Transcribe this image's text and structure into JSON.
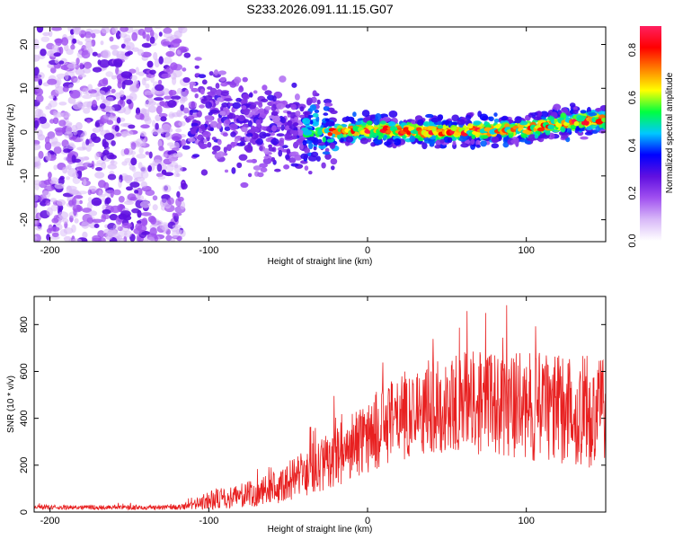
{
  "chart_data": [
    {
      "type": "heatmap",
      "panel": "spectrogram",
      "title": "S233.2026.091.11.15.G07",
      "xlabel": "Height of straight line (km)",
      "ylabel": "Frequency (Hz)",
      "xlim": [
        -210,
        150
      ],
      "ylim": [
        -25,
        24
      ],
      "xticks": [
        -200,
        -100,
        0,
        100
      ],
      "yticks": [
        -20,
        -10,
        0,
        10,
        20
      ],
      "colorbar": {
        "label": "Normalized spectral amplitude",
        "range": [
          0.0,
          0.9
        ],
        "ticks": [
          0.0,
          0.2,
          0.4,
          0.6,
          0.8
        ],
        "colormap": [
          "#ffffff",
          "#d8b8f8",
          "#a050f0",
          "#6010e0",
          "#0000ff",
          "#00c8ff",
          "#00ff40",
          "#ffff00",
          "#ff8000",
          "#ff0000",
          "#ff2060"
        ]
      },
      "ridge": {
        "description_x": [
          -100,
          -60,
          -20,
          0,
          40,
          80,
          100,
          120,
          150
        ],
        "frequency_hz": [
          4,
          1,
          0,
          0.5,
          0,
          0.5,
          0.5,
          2,
          3
        ]
      },
      "noise_region_x": [
        -210,
        -115
      ]
    },
    {
      "type": "line",
      "panel": "snr",
      "xlabel": "Height of straight line (km)",
      "ylabel": "SNR (10 * v/v)",
      "xlim": [
        -210,
        150
      ],
      "ylim": [
        0,
        920
      ],
      "xticks": [
        -200,
        -100,
        0,
        100
      ],
      "yticks": [
        0,
        200,
        400,
        600,
        800
      ],
      "line_color": "#e82020",
      "series": [
        {
          "name": "SNR",
          "x": [
            -210,
            -180,
            -150,
            -120,
            -110,
            -100,
            -80,
            -60,
            -40,
            -20,
            0,
            20,
            40,
            60,
            80,
            100,
            120,
            140,
            150
          ],
          "mean_snr": [
            20,
            20,
            20,
            20,
            30,
            50,
            70,
            100,
            160,
            240,
            320,
            400,
            450,
            470,
            460,
            450,
            440,
            430,
            430
          ],
          "spread": [
            10,
            10,
            10,
            10,
            20,
            40,
            50,
            70,
            100,
            130,
            160,
            180,
            200,
            220,
            220,
            230,
            240,
            240,
            240
          ]
        }
      ]
    }
  ]
}
